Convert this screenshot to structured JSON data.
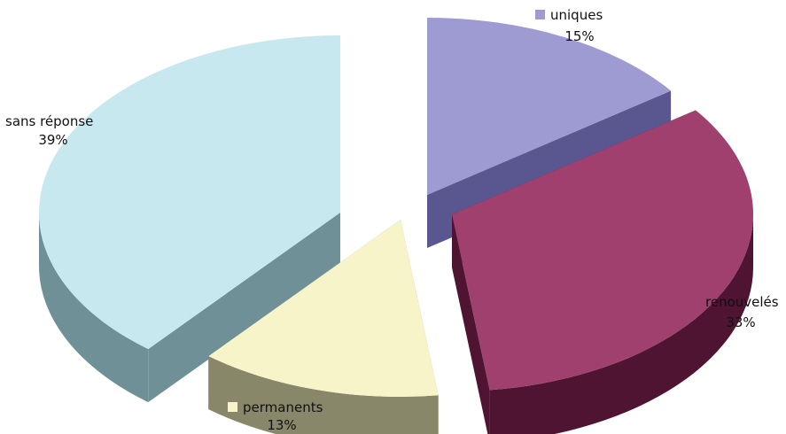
{
  "chart_data": {
    "type": "pie",
    "style": "3d-exploded",
    "slices": [
      {
        "label": "uniques",
        "value": 15,
        "display": "15%",
        "color": "#9e9bd2",
        "side_color": "#5a5690"
      },
      {
        "label": "renouvelés",
        "value": 33,
        "display": "33%",
        "color": "#a0406e",
        "side_color": "#4e1432"
      },
      {
        "label": "permanents",
        "value": 13,
        "display": "13%",
        "color": "#f7f4c9",
        "side_color": "#88876a"
      },
      {
        "label": "sans réponse",
        "value": 39,
        "display": "39%",
        "color": "#c8e8f0",
        "side_color": "#6e9096"
      }
    ]
  }
}
